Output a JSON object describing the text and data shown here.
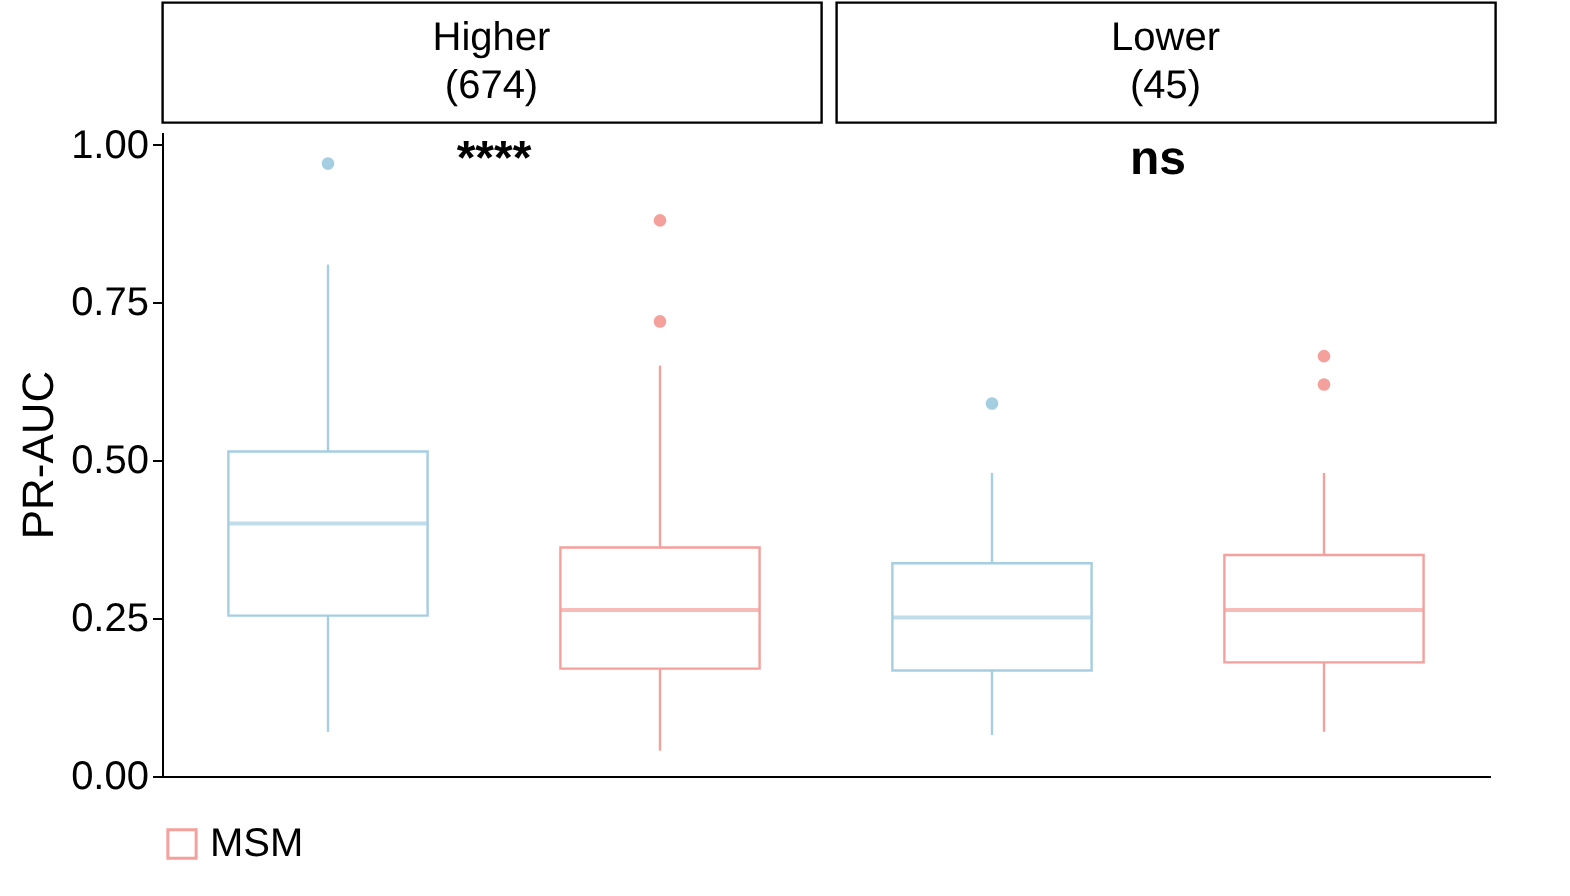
{
  "chart_data": {
    "type": "box",
    "ylabel": "PR-AUC",
    "categories": [
      null,
      null,
      null,
      null
    ],
    "ylim": [
      0,
      1.02
    ],
    "yticks": [
      {
        "value": 0,
        "label": "0.00"
      },
      {
        "value": 0.25,
        "label": "0.25"
      },
      {
        "value": 0.5,
        "label": "0.50"
      },
      {
        "value": 0.75,
        "label": "0.75"
      },
      {
        "value": 1,
        "label": "1.00"
      }
    ],
    "tick_labels": "y",
    "legend": "bottom",
    "annotations": [
      "Higher (674)",
      "Lower (45)",
      "****",
      "ns"
    ],
    "series": [
      {
        "color": "#a6cee3",
        "boxes": [
          {
            "low": 0.07,
            "q1": 0.254,
            "median": 0.4,
            "q3": 0.514,
            "high": 0.81,
            "outliers": [
              0.97
            ]
          },
          null,
          {
            "low": 0.065,
            "q1": 0.167,
            "median": 0.251,
            "q3": 0.337,
            "high": 0.48,
            "outliers": [
              0.59
            ]
          },
          null
        ]
      },
      {
        "name": "MSM",
        "color": "#f4a09c",
        "boxes": [
          null,
          {
            "low": 0.04,
            "q1": 0.17,
            "median": 0.263,
            "q3": 0.362,
            "high": 0.65,
            "outliers": [
              0.72,
              0.88
            ]
          },
          null,
          {
            "low": 0.07,
            "q1": 0.18,
            "median": 0.263,
            "q3": 0.35,
            "high": 0.48,
            "outliers": [
              0.62,
              0.665
            ]
          }
        ]
      }
    ]
  }
}
